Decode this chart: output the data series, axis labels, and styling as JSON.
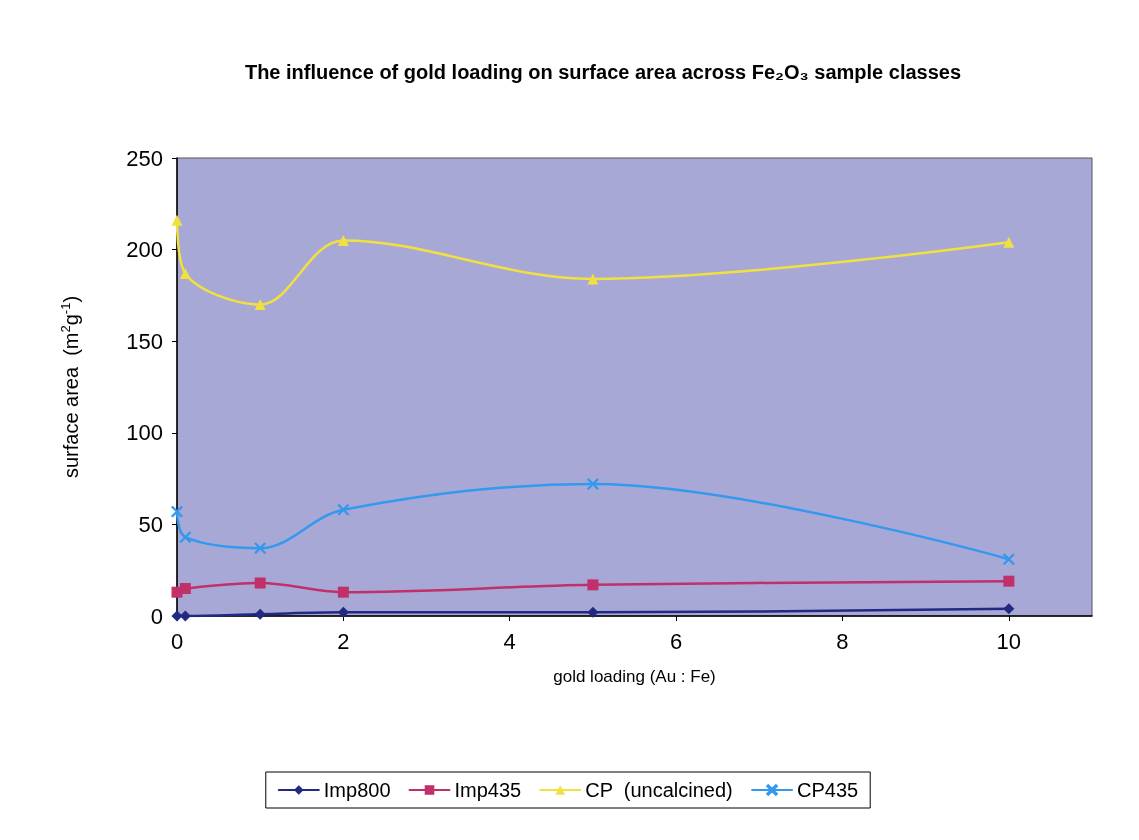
{
  "chart_data": {
    "type": "line",
    "title": "The influence of gold loading on surface area across Fe₂O₃ sample classes",
    "xlabel": "gold loading (Au : Fe)",
    "ylabel": "surface area  (m$^{2}$g$^{-1}$)",
    "xlim": [
      0,
      11
    ],
    "xticks": [
      0,
      2,
      4,
      6,
      8,
      10
    ],
    "ylim": [
      0,
      250
    ],
    "yticks": [
      0,
      50,
      100,
      150,
      200,
      250
    ],
    "grid": false,
    "legend": "bottom",
    "series": [
      {
        "name": "Imp800",
        "color": "#1f2a80",
        "marker": "diamond",
        "x": [
          0,
          0.1,
          1,
          2,
          5,
          10
        ],
        "values": [
          0,
          0,
          1,
          2,
          2,
          4
        ]
      },
      {
        "name": "Imp435",
        "color": "#c0306a",
        "marker": "square",
        "x": [
          0,
          0.1,
          1,
          2,
          5,
          10
        ],
        "values": [
          13,
          15,
          18,
          13,
          17,
          19
        ]
      },
      {
        "name": "CP  (uncalcined)",
        "color": "#f0e040",
        "marker": "triangle",
        "x": [
          0,
          0.1,
          1,
          2,
          5,
          10
        ],
        "values": [
          216,
          187,
          170,
          205,
          184,
          204
        ]
      },
      {
        "name": "CP435",
        "color": "#3399ee",
        "marker": "cross",
        "x": [
          0,
          0.1,
          1,
          2,
          5,
          10
        ],
        "values": [
          57,
          43,
          37,
          58,
          72,
          31
        ]
      }
    ]
  }
}
